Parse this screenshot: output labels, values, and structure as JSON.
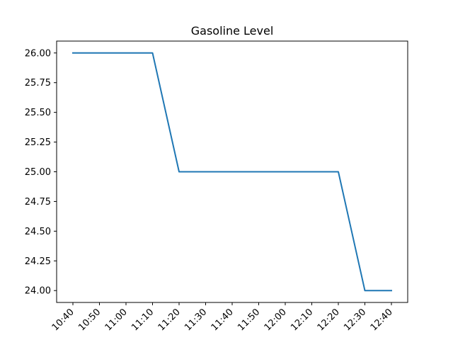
{
  "chart_data": {
    "type": "line",
    "title": "Gasoline Level",
    "xlabel": "",
    "ylabel": "",
    "x": [
      "10:40",
      "10:50",
      "11:00",
      "11:10",
      "11:20",
      "11:30",
      "11:40",
      "11:50",
      "12:00",
      "12:10",
      "12:20",
      "12:30",
      "12:40"
    ],
    "series": [
      {
        "color": "#1f77b4",
        "values": [
          26.0,
          26.0,
          26.0,
          26.0,
          25.0,
          25.0,
          25.0,
          25.0,
          25.0,
          25.0,
          25.0,
          24.0,
          24.0
        ]
      }
    ],
    "x_tick_labels": [
      "10:40",
      "10:50",
      "11:00",
      "11:10",
      "11:20",
      "11:30",
      "11:40",
      "11:50",
      "12:00",
      "12:10",
      "12:20",
      "12:30",
      "12:40"
    ],
    "y_tick_labels": [
      "24.00",
      "24.25",
      "24.50",
      "24.75",
      "25.00",
      "25.25",
      "25.50",
      "25.75",
      "26.00"
    ],
    "y_ticks": [
      24.0,
      24.25,
      24.5,
      24.75,
      25.0,
      25.25,
      25.5,
      25.75,
      26.0
    ],
    "ylim": [
      23.9,
      26.1
    ],
    "grid": false,
    "legend": false
  }
}
